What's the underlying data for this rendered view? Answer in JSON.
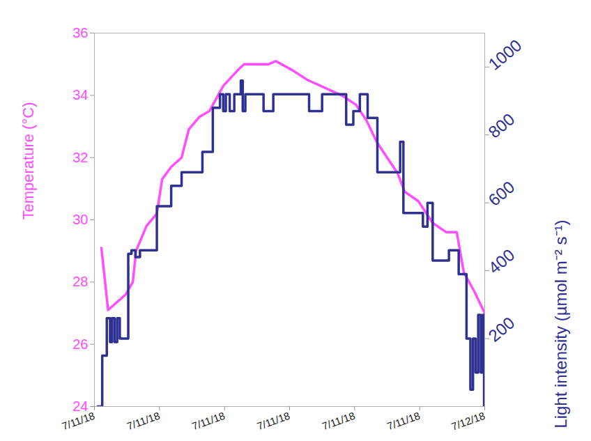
{
  "chart_data": {
    "type": "line",
    "ylabel": "Temperature (°C)",
    "y2label": "Light intensity (µmol m⁻² s⁻¹)",
    "xlim": [
      0,
      6
    ],
    "xticks": [
      {
        "value": 0,
        "label": "7/11/18"
      },
      {
        "value": 1,
        "label": "7/11/18"
      },
      {
        "value": 2,
        "label": "7/11/18"
      },
      {
        "value": 3,
        "label": "7/11/18"
      },
      {
        "value": 4,
        "label": "7/11/18"
      },
      {
        "value": 5,
        "label": "7/11/18"
      },
      {
        "value": 6,
        "label": "7/12/18"
      }
    ],
    "ylim": [
      24,
      36
    ],
    "yticks": [
      24,
      26,
      28,
      30,
      32,
      34,
      36
    ],
    "y2lim": [
      0,
      1100
    ],
    "y2ticks": [
      200,
      400,
      600,
      800,
      1000
    ],
    "grid": false,
    "series": [
      {
        "color": "#ff4dff",
        "axis": "y",
        "line_style": "solid",
        "x": [
          0.107,
          0.21,
          0.48,
          0.59,
          0.64,
          0.8,
          0.96,
          1.04,
          1.18,
          1.34,
          1.45,
          1.61,
          1.77,
          1.98,
          2.2,
          2.3,
          2.68,
          2.79,
          3.05,
          3.27,
          3.48,
          3.8,
          4.02,
          4.18,
          4.34,
          4.5,
          4.66,
          4.77,
          4.98,
          5.2,
          5.41,
          5.57,
          5.68,
          5.84,
          6.0
        ],
        "values": [
          29.1,
          27.1,
          27.6,
          28.0,
          29.0,
          29.8,
          30.2,
          31.3,
          31.7,
          32.0,
          32.9,
          33.3,
          33.5,
          34.3,
          34.8,
          35.0,
          35.0,
          35.1,
          34.8,
          34.5,
          34.3,
          34.0,
          33.7,
          33.2,
          32.5,
          32.0,
          31.5,
          30.9,
          30.6,
          29.9,
          29.6,
          29.6,
          28.3,
          27.7,
          27.0
        ]
      },
      {
        "color": "#2e3192",
        "axis": "y2",
        "line_style": "step",
        "x": [
          0.05,
          0.12,
          0.19,
          0.24,
          0.27,
          0.31,
          0.35,
          0.39,
          0.47,
          0.52,
          0.57,
          0.63,
          0.7,
          0.96,
          1.18,
          1.34,
          1.66,
          1.82,
          1.93,
          1.98,
          2.02,
          2.08,
          2.15,
          2.25,
          2.28,
          2.32,
          2.6,
          2.75,
          3.3,
          3.5,
          3.87,
          3.98,
          4.08,
          4.2,
          4.35,
          4.7,
          4.75,
          5.05,
          5.12,
          5.2,
          5.45,
          5.6,
          5.72,
          5.78,
          5.82,
          5.86,
          5.9,
          5.94,
          5.97,
          5.99
        ],
        "values": [
          0,
          150,
          260,
          190,
          260,
          190,
          260,
          200,
          200,
          450,
          460,
          440,
          460,
          590,
          650,
          690,
          750,
          880,
          920,
          870,
          920,
          870,
          920,
          960,
          870,
          920,
          870,
          920,
          870,
          920,
          830,
          870,
          920,
          850,
          690,
          780,
          570,
          530,
          600,
          430,
          460,
          390,
          200,
          50,
          200,
          100,
          270,
          100,
          270,
          0
        ]
      }
    ]
  }
}
